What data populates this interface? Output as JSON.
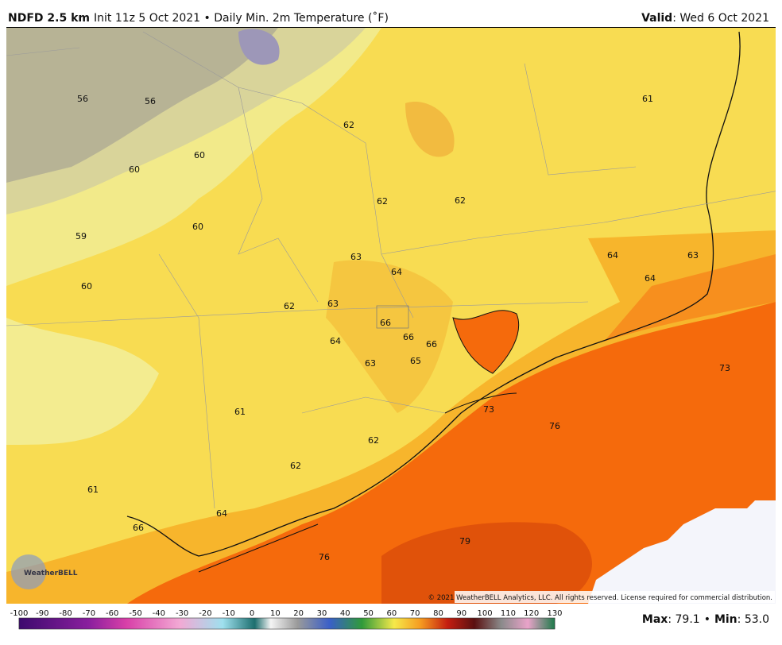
{
  "header": {
    "title": "NDFD 2.5 km",
    "subtitle": "Init 11z 5 Oct 2021 • Daily Min. 2m Temperature (˚F)",
    "valid_label": "Valid",
    "valid_value": ": Wed 6 Oct 2021"
  },
  "map_labels": [
    56,
    56,
    62,
    61,
    60,
    60,
    62,
    62,
    60,
    59,
    63,
    64,
    63,
    64,
    64,
    60,
    62,
    63,
    66,
    66,
    66,
    64,
    63,
    65,
    73,
    73,
    76,
    61,
    62,
    62,
    61,
    64,
    66,
    79,
    76
  ],
  "logo": "WeatherBELL",
  "copyright": "© 2021 WeatherBELL Analytics, LLC. All rights reserved. License required for commercial distribution.",
  "colorbar_ticks": [
    -100,
    -90,
    -80,
    -70,
    -60,
    -50,
    -40,
    -30,
    -20,
    -10,
    0,
    10,
    20,
    30,
    40,
    50,
    60,
    70,
    80,
    90,
    100,
    110,
    120,
    130
  ],
  "stats": {
    "max_label": "Max",
    "max_value": ": 79.1",
    "separator": "•",
    "min_label": "Min",
    "min_value": ": 53.0"
  }
}
